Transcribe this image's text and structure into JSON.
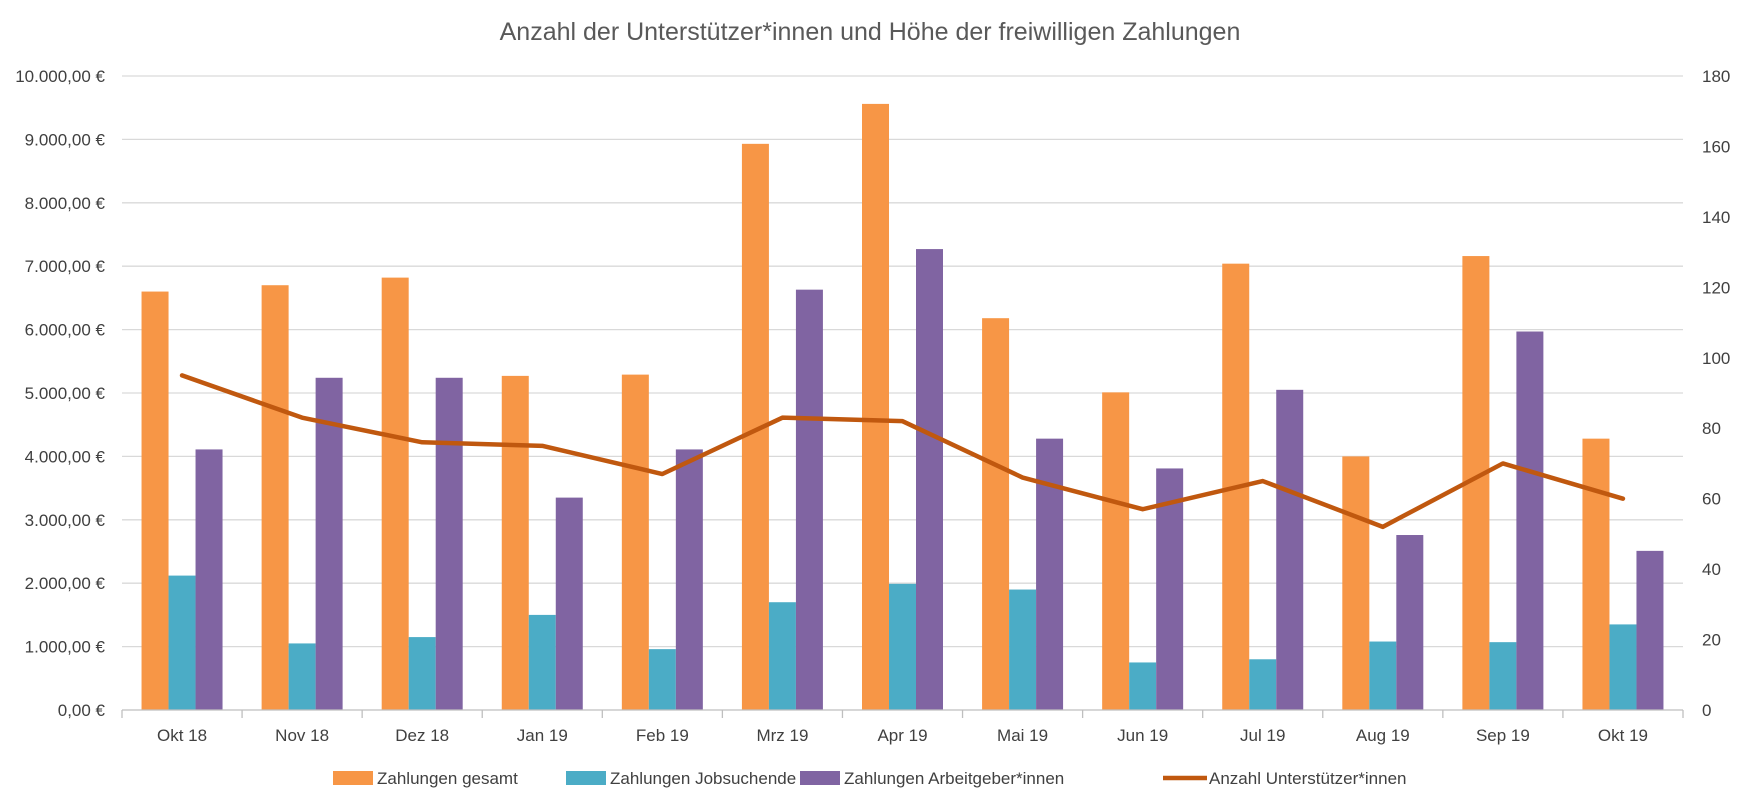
{
  "chart_data": {
    "type": "bar",
    "title": "Anzahl der Unterstützer*innen und Höhe der freiwilligen Zahlungen",
    "categories": [
      "Okt 18",
      "Nov 18",
      "Dez 18",
      "Jan 19",
      "Feb 19",
      "Mrz 19",
      "Apr 19",
      "Mai 19",
      "Jun 19",
      "Jul 19",
      "Aug 19",
      "Sep 19",
      "Okt 19"
    ],
    "y_left": {
      "ylim": [
        0,
        10000
      ],
      "ticks": [
        0,
        1000,
        2000,
        3000,
        4000,
        5000,
        6000,
        7000,
        8000,
        9000,
        10000
      ],
      "tick_labels": [
        "0,00 €",
        "1.000,00 €",
        "2.000,00 €",
        "3.000,00 €",
        "4.000,00 €",
        "5.000,00 €",
        "6.000,00 €",
        "7.000,00 €",
        "8.000,00 €",
        "9.000,00 €",
        "10.000,00 €"
      ]
    },
    "y_right": {
      "ylim": [
        0,
        180
      ],
      "ticks": [
        0,
        20,
        40,
        60,
        80,
        100,
        120,
        140,
        160,
        180
      ],
      "tick_labels": [
        "0",
        "20",
        "40",
        "60",
        "80",
        "100",
        "120",
        "140",
        "160",
        "180"
      ]
    },
    "grid": true,
    "legend_position": "bottom",
    "series": [
      {
        "name": "Zahlungen gesamt",
        "type": "bar",
        "axis": "left",
        "color": "#F79646",
        "values": [
          6600,
          6700,
          6820,
          5270,
          5290,
          8930,
          9560,
          6180,
          5010,
          7040,
          4000,
          7160,
          4280
        ]
      },
      {
        "name": "Zahlungen Jobsuchende",
        "type": "bar",
        "axis": "left",
        "color": "#4BACC6",
        "values": [
          2120,
          1050,
          1150,
          1500,
          960,
          1700,
          1990,
          1900,
          750,
          800,
          1080,
          1070,
          1350
        ]
      },
      {
        "name": "Zahlungen Arbeitgeber*innen",
        "type": "bar",
        "axis": "left",
        "color": "#8064A2",
        "values": [
          4110,
          5240,
          5240,
          3350,
          4110,
          6630,
          7270,
          4280,
          3810,
          5050,
          2760,
          5970,
          2510
        ]
      },
      {
        "name": "Anzahl Unterstützer*innen",
        "type": "line",
        "axis": "right",
        "color": "#C0580F",
        "values": [
          95,
          83,
          76,
          75,
          67,
          83,
          82,
          66,
          57,
          65,
          52,
          70,
          60
        ]
      }
    ]
  }
}
